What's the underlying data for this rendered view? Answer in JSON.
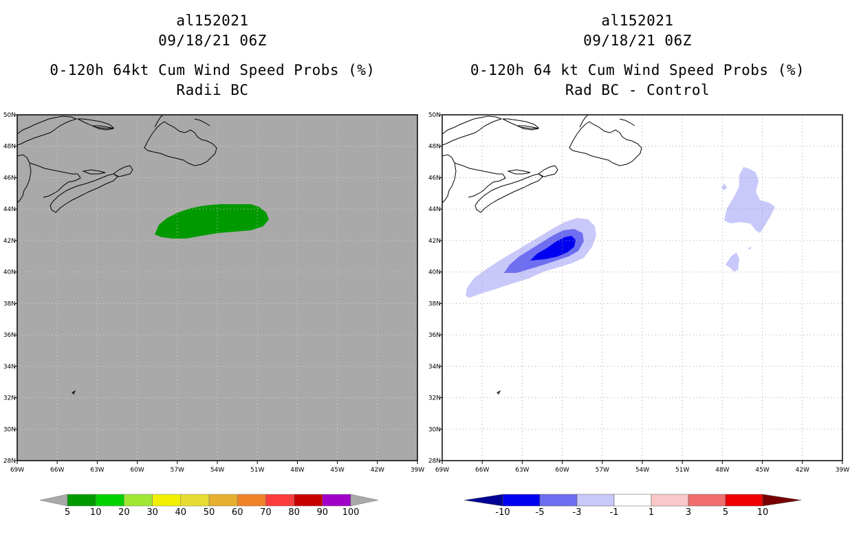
{
  "left_panel": {
    "storm_id": "al152021",
    "datetime": "09/18/21 06Z",
    "product": "0-120h 64kt Cum Wind Speed Probs (%)",
    "subtitle": "Radii BC",
    "background_color": "#a9a9a9",
    "contour_color": "#009a00",
    "colorbar": {
      "labels": [
        "5",
        "10",
        "20",
        "30",
        "40",
        "50",
        "60",
        "70",
        "80",
        "90",
        "100"
      ],
      "colors": [
        "#009a00",
        "#00d200",
        "#a0e632",
        "#f0f000",
        "#e6dc32",
        "#e6af2d",
        "#f08228",
        "#fa3c3c",
        "#c80000",
        "#a000c8"
      ],
      "end_color": "#a9a9a9"
    }
  },
  "right_panel": {
    "storm_id": "al152021",
    "datetime": "09/18/21 06Z",
    "product": "0-120h 64 kt Cum Wind Speed Probs (%)",
    "subtitle": "Rad BC - Control",
    "background_color": "#ffffff",
    "colorbar": {
      "labels": [
        "-10",
        "-5",
        "-3",
        "-1",
        "1",
        "3",
        "5",
        "10"
      ],
      "colors": [
        "#0000f0",
        "#6e6ef0",
        "#c8c8fa",
        "#ffffff",
        "#fac8c8",
        "#f06e6e",
        "#f00000"
      ],
      "end_low_color": "#000096",
      "end_high_color": "#780000"
    }
  },
  "map": {
    "lat_labels": [
      "28N",
      "30N",
      "32N",
      "34N",
      "36N",
      "38N",
      "40N",
      "42N",
      "44N",
      "46N",
      "48N",
      "50N"
    ],
    "lon_labels": [
      "69W",
      "66W",
      "63W",
      "60W",
      "57W",
      "54W",
      "51W",
      "48W",
      "45W",
      "42W",
      "39W"
    ],
    "lat_values": [
      28,
      30,
      32,
      34,
      36,
      38,
      40,
      42,
      44,
      46,
      48,
      50
    ],
    "lon_values": [
      -69,
      -66,
      -63,
      -60,
      -57,
      -54,
      -51,
      -48,
      -45,
      -42,
      -39
    ]
  }
}
